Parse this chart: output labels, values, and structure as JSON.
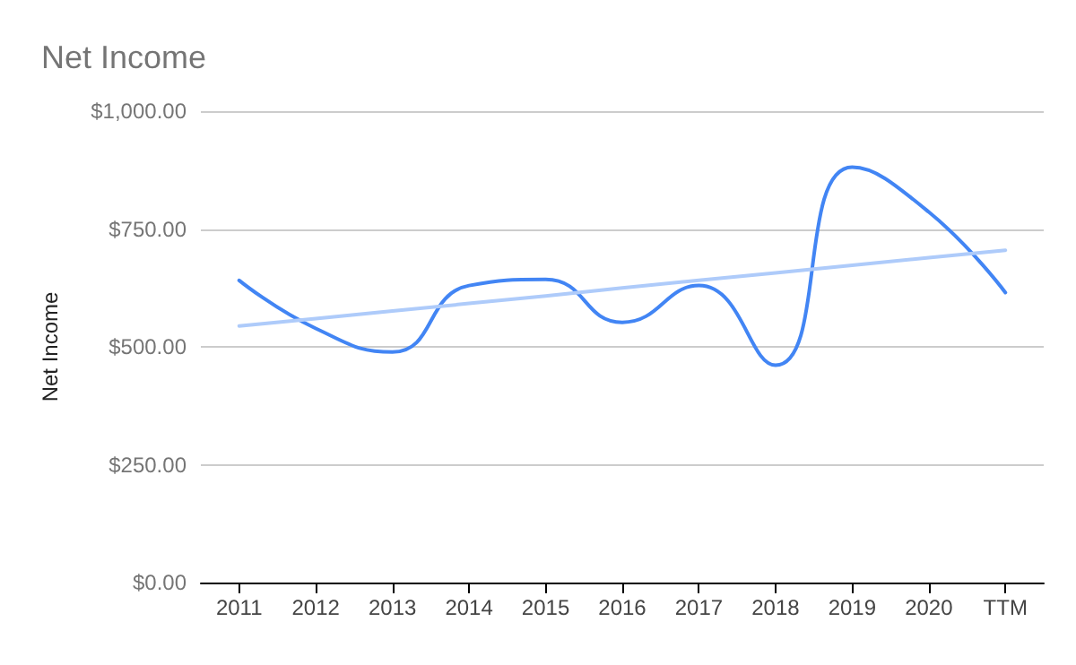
{
  "chart_data": {
    "type": "line",
    "title": "Net Income",
    "ylabel": "Net Income",
    "categories": [
      "2011",
      "2012",
      "2013",
      "2014",
      "2015",
      "2016",
      "2017",
      "2018",
      "2019",
      "2020",
      "TTM"
    ],
    "series": [
      {
        "color": "#4285f4",
        "values": [
          641,
          539,
          489,
          630,
          643,
          552,
          630,
          461,
          881,
          786,
          615
        ]
      },
      {
        "type": "line",
        "color": "#aecbfa",
        "values": [
          544,
          560,
          576,
          592,
          608,
          625,
          641,
          657,
          673,
          689,
          705
        ]
      }
    ],
    "ylim": [
      0,
      1000
    ],
    "yticks": [
      {
        "value": 0,
        "label": "$0.00"
      },
      {
        "value": 250,
        "label": "$250.00"
      },
      {
        "value": 500,
        "label": "$500.00"
      },
      {
        "value": 750,
        "label": "$750.00"
      },
      {
        "value": 1000,
        "label": "$1,000.00"
      }
    ],
    "grid": "y",
    "marker": "none",
    "line_style": "solid"
  }
}
